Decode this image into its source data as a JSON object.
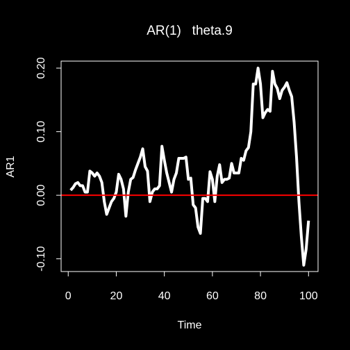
{
  "chart_data": {
    "type": "line",
    "title": "AR(1)   theta.9",
    "xlabel": "Time",
    "ylabel": "AR1",
    "x": [
      1,
      2,
      3,
      4,
      5,
      6,
      7,
      8,
      9,
      10,
      11,
      12,
      13,
      14,
      15,
      16,
      17,
      18,
      19,
      20,
      21,
      22,
      23,
      24,
      25,
      26,
      27,
      28,
      29,
      30,
      31,
      32,
      33,
      34,
      35,
      36,
      37,
      38,
      39,
      40,
      41,
      42,
      43,
      44,
      45,
      46,
      47,
      48,
      49,
      50,
      51,
      52,
      53,
      54,
      55,
      56,
      57,
      58,
      59,
      60,
      61,
      62,
      63,
      64,
      65,
      66,
      67,
      68,
      69,
      70,
      71,
      72,
      73,
      74,
      75,
      76,
      77,
      78,
      79,
      80,
      81,
      82,
      83,
      84,
      85,
      86,
      87,
      88,
      89,
      90,
      91,
      92,
      93,
      94,
      95,
      96,
      97,
      98,
      99,
      100
    ],
    "series": [
      {
        "color": "#ffffff",
        "values": [
          0.008,
          0.012,
          0.018,
          0.02,
          0.015,
          0.015,
          0.005,
          0.005,
          0.038,
          0.035,
          0.03,
          0.035,
          0.03,
          0.02,
          -0.01,
          -0.03,
          -0.02,
          -0.01,
          -0.005,
          0.005,
          0.033,
          0.025,
          0.01,
          -0.033,
          0.005,
          0.025,
          0.028,
          0.04,
          0.05,
          0.06,
          0.073,
          0.045,
          0.038,
          -0.01,
          0.005,
          0.01,
          0.01,
          0.015,
          0.077,
          0.055,
          0.035,
          0.02,
          0.005,
          0.025,
          0.035,
          0.058,
          0.058,
          0.058,
          0.06,
          0.025,
          0.027,
          -0.015,
          -0.02,
          -0.05,
          -0.06,
          -0.005,
          -0.005,
          -0.01,
          0.037,
          0.025,
          -0.01,
          0.03,
          0.048,
          0.02,
          0.025,
          0.025,
          0.027,
          0.05,
          0.035,
          0.035,
          0.035,
          0.058,
          0.055,
          0.07,
          0.075,
          0.1,
          0.175,
          0.175,
          0.2,
          0.175,
          0.122,
          0.13,
          0.135,
          0.132,
          0.195,
          0.175,
          0.168,
          0.152,
          0.165,
          0.17,
          0.177,
          0.165,
          0.155,
          0.115,
          0.06,
          -0.01,
          -0.065,
          -0.11,
          -0.085,
          -0.04
        ]
      }
    ],
    "reference_line": {
      "value": 0,
      "color": "#ff0000"
    },
    "xlim": [
      -2.96,
      103.96
    ],
    "xticks": [
      0,
      20,
      40,
      60,
      80,
      100
    ],
    "ylim": [
      -0.12,
      0.211
    ],
    "yticks": [
      {
        "value": -0.1,
        "label": "-0.10"
      },
      {
        "value": 0,
        "label": "0.00"
      },
      {
        "value": 0.1,
        "label": "0.10"
      },
      {
        "value": 0.2,
        "label": "0.20"
      }
    ]
  }
}
